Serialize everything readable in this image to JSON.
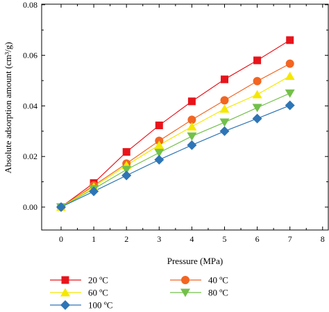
{
  "chart_data": {
    "type": "line",
    "x": [
      0,
      1,
      2,
      3,
      4,
      5,
      6,
      7
    ],
    "xlabel": "Pressure (MPa)",
    "ylabel": "Absolute adsorption amount (cm³/g)",
    "xlim": [
      -0.3,
      8
    ],
    "ylim": [
      -0.008,
      0.08
    ],
    "xticks": [
      "0",
      "1",
      "2",
      "3",
      "4",
      "5",
      "6",
      "7",
      "8"
    ],
    "yticks": [
      "0.00",
      "0.02",
      "0.04",
      "0.06",
      "0.08"
    ],
    "grid": false,
    "legend_position": "bottom",
    "series": [
      {
        "name": "20 ºC",
        "color": "#e8141b",
        "marker": "square",
        "values": [
          0,
          0.0095,
          0.0218,
          0.0323,
          0.0418,
          0.0505,
          0.058,
          0.066
        ]
      },
      {
        "name": "40 ºC",
        "color": "#f26522",
        "marker": "circle",
        "values": [
          0,
          0.0085,
          0.0172,
          0.0262,
          0.0345,
          0.0422,
          0.0498,
          0.0567
        ]
      },
      {
        "name": "60 ºC",
        "color": "#f5e800",
        "marker": "triangle-up",
        "values": [
          0,
          0.008,
          0.0165,
          0.0245,
          0.0318,
          0.0388,
          0.0445,
          0.0518
        ]
      },
      {
        "name": "80 ºC",
        "color": "#73c04a",
        "marker": "triangle-down",
        "values": [
          0,
          0.0072,
          0.0148,
          0.0215,
          0.028,
          0.0335,
          0.0393,
          0.045
        ]
      },
      {
        "name": "100 ºC",
        "color": "#2e75b6",
        "marker": "diamond",
        "values": [
          0,
          0.0062,
          0.0125,
          0.0187,
          0.0245,
          0.03,
          0.035,
          0.0402
        ]
      }
    ],
    "legend_order": [
      0,
      1,
      2,
      3,
      4
    ]
  }
}
